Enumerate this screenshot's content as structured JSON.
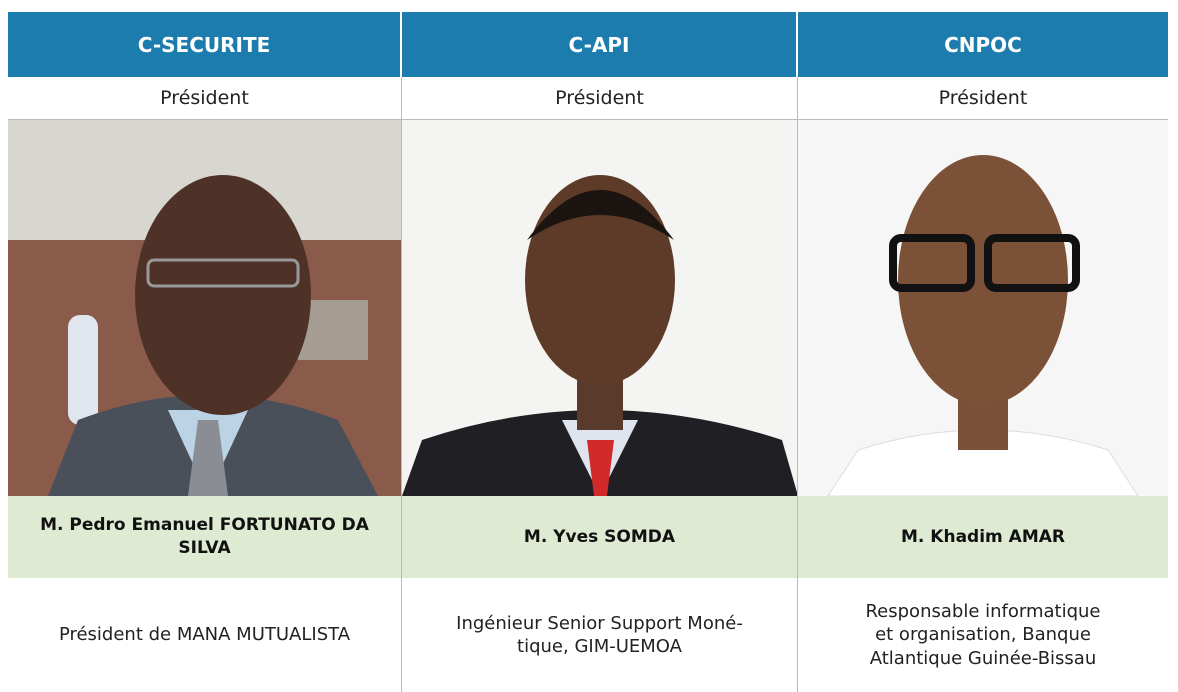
{
  "table": {
    "columns": [
      {
        "header": "C-SECURITE",
        "role": "Président",
        "name": "M. Pedro Emanuel FORTUNATO DA SILVA",
        "description": [
          "Président de MANA MUTUALISTA"
        ]
      },
      {
        "header": "C-API",
        "role": "Président",
        "name": "M. Yves SOMDA",
        "description": [
          "Ingénieur Senior Support Moné-",
          "tique, GIM-UEMOA"
        ]
      },
      {
        "header": "CNPOC",
        "role": "Président",
        "name": "M. Khadim AMAR",
        "description": [
          "Responsable informatique",
          "et organisation, Banque",
          "Atlantique Guinée-Bissau"
        ]
      }
    ]
  }
}
